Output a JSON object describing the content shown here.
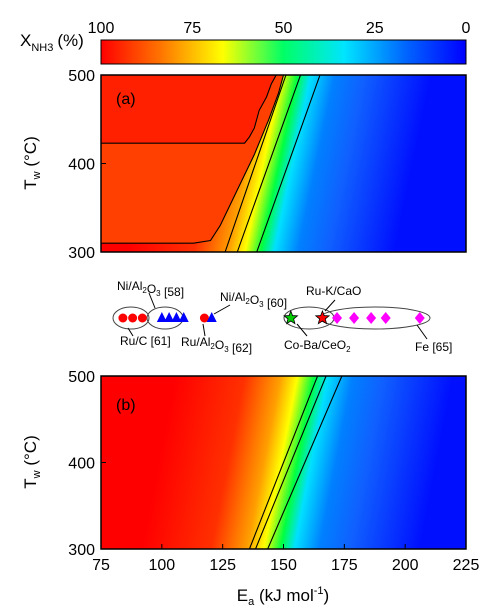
{
  "colorbar": {
    "label_main": "X",
    "label_sub": "NH3",
    "label_unit": "(%)",
    "ticks": [
      "100",
      "75",
      "50",
      "25",
      "0"
    ],
    "colors": [
      "#ff0000",
      "#ff7700",
      "#ffff00",
      "#00ff66",
      "#00e5ff",
      "#0066ff",
      "#0000ff"
    ]
  },
  "legend_labels": {
    "ni58": "Ni/Al2O3 [58]",
    "ruc61": "Ru/C [61]",
    "ni60": "Ni/Al2O3 [60]",
    "rual62": "Ru/Al2O3 [62]",
    "rukcao": "Ru-K/CaO",
    "cobaceo2": "Co-Ba/CeO2",
    "fe65": "Fe [65]"
  },
  "chart_data": [
    {
      "type": "heatmap",
      "panel": "(a)",
      "xlim": [
        75,
        225
      ],
      "ylim": [
        300,
        500
      ],
      "y_ticks": [
        "300",
        "400",
        "500"
      ],
      "ylabel": "Tw (°C)",
      "colorbar_range": [
        0,
        100
      ],
      "contour_levels": [
        99,
        90,
        50,
        10
      ],
      "contours": [
        {
          "level": "plateau-400",
          "points": [
            [
              75,
              423
            ],
            [
              134,
              423
            ],
            [
              136,
              430
            ],
            [
              138,
              440
            ],
            [
              140,
              460
            ],
            [
              143,
              475
            ],
            [
              145,
              490
            ],
            [
              147,
              500
            ]
          ]
        },
        {
          "level": "plateau-310",
          "points": [
            [
              75,
              310
            ],
            [
              113,
              310
            ],
            [
              120,
              313
            ],
            [
              124,
              330
            ],
            [
              131,
              370
            ],
            [
              138,
              410
            ],
            [
              144,
              450
            ],
            [
              148,
              480
            ],
            [
              150,
              500
            ]
          ]
        },
        {
          "level": "inner-1",
          "points": [
            [
              126,
              300
            ],
            [
              151,
              500
            ]
          ]
        },
        {
          "level": "inner-2",
          "points": [
            [
              131,
              300
            ],
            [
              157,
              500
            ]
          ]
        },
        {
          "level": "outer",
          "points": [
            [
              139,
              300
            ],
            [
              165,
              500
            ]
          ]
        }
      ],
      "markers": [
        {
          "catalyst": "Ru/C [61]",
          "shape": "circle",
          "color": "#ff0000",
          "x": [
            84,
            88,
            92
          ]
        },
        {
          "catalyst": "Ni/Al2O3 [58]",
          "shape": "triangle",
          "color": "#0000ff",
          "x": [
            100,
            103,
            106,
            109
          ]
        },
        {
          "catalyst": "Ru/Al2O3 [62]",
          "shape": "circle",
          "color": "#ff0000",
          "x": [
            117.5
          ]
        },
        {
          "catalyst": "Ni/Al2O3 [60]",
          "shape": "triangle",
          "color": "#0000ff",
          "x": [
            120.5
          ]
        },
        {
          "catalyst": "Co-Ba/CeO2",
          "shape": "star",
          "color": "#00cc00",
          "x": [
            153
          ]
        },
        {
          "catalyst": "Ru-K/CaO",
          "shape": "star",
          "color": "#ff0000",
          "x": [
            166
          ]
        },
        {
          "catalyst": "Fe [65]",
          "shape": "diamond",
          "color": "#ff00ff",
          "x": [
            172,
            179,
            186,
            192,
            206
          ]
        }
      ]
    },
    {
      "type": "heatmap",
      "panel": "(b)",
      "xlim": [
        75,
        225
      ],
      "ylim": [
        300,
        500
      ],
      "x_ticks": [
        "75",
        "100",
        "125",
        "150",
        "175",
        "200",
        "225"
      ],
      "y_ticks": [
        "300",
        "400",
        "500"
      ],
      "xlabel": "Ea (kJ mol-1)",
      "ylabel": "Tw (°C)",
      "contours": [
        {
          "level": "inner-1",
          "points": [
            [
              136,
              300
            ],
            [
              164,
              500
            ]
          ]
        },
        {
          "level": "inner-2",
          "points": [
            [
              138.5,
              300
            ],
            [
              167.5,
              500
            ]
          ]
        },
        {
          "level": "outer",
          "points": [
            [
              143.5,
              300
            ],
            [
              174,
              500
            ]
          ]
        }
      ]
    }
  ]
}
